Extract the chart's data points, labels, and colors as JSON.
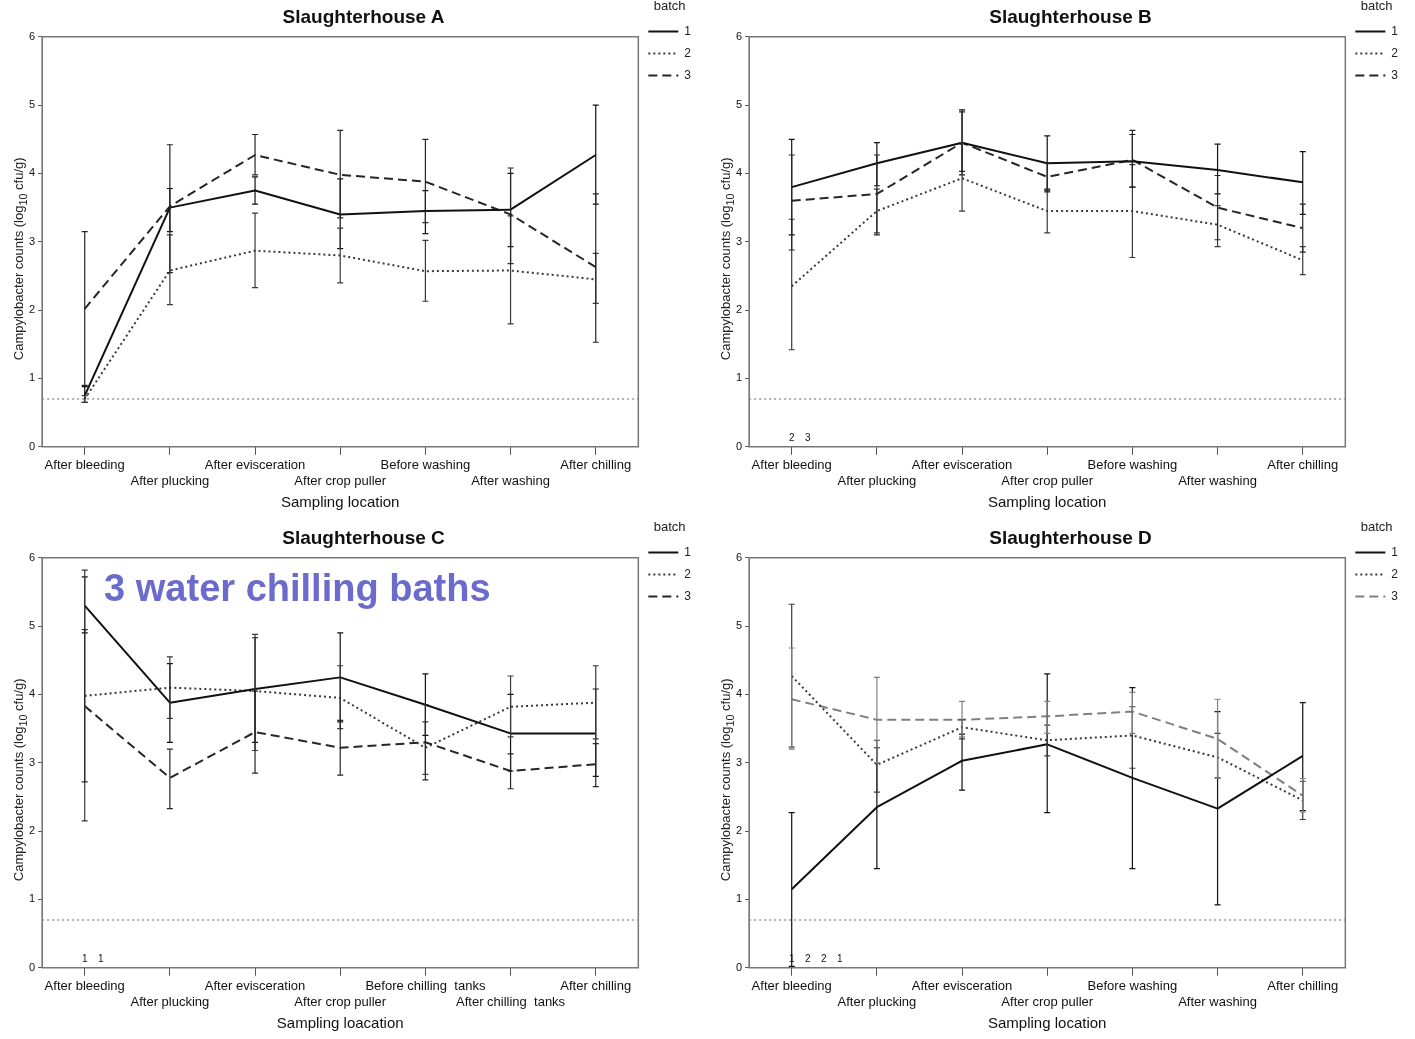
{
  "chart_data": [
    {
      "type": "line",
      "title": "Slaughterhouse A",
      "xlabel": "Sampling location",
      "ylabel": "Campylobacter counts (log$_{10}$ cfu/g)",
      "legend_title": "batch",
      "legend": "top right",
      "categories": [
        "After bleeding",
        "After plucking",
        "After evisceration",
        "After crop puller",
        "Before washing",
        "After washing",
        "After chilling"
      ],
      "ylim": [
        0,
        6
      ],
      "yticks": [
        0,
        1,
        2,
        3,
        4,
        5,
        6
      ],
      "ref_lines": [
        {
          "axis": "y",
          "value": 0.7,
          "color": "#999999",
          "line_style": "dotted"
        }
      ],
      "series": [
        {
          "name": "1",
          "color": "#111111",
          "line_style": "solid",
          "values": [
            0.75,
            3.5,
            3.75,
            3.4,
            3.45,
            3.47,
            4.27
          ],
          "errors": [
            [
              0.65,
              0.88
            ],
            [
              3.15,
              3.78
            ],
            [
              3.55,
              3.95
            ],
            [
              2.9,
              3.92
            ],
            [
              3.12,
              3.75
            ],
            [
              2.93,
              4.0
            ],
            [
              3.55,
              5.0
            ]
          ]
        },
        {
          "name": "2",
          "color": "#3a3a3a",
          "line_style": "dotted",
          "values": [
            0.7,
            2.58,
            2.87,
            2.8,
            2.57,
            2.58,
            2.45
          ],
          "errors": [
            [
              0.65,
              0.75
            ],
            [
              2.08,
              3.1
            ],
            [
              2.33,
              3.42
            ],
            [
              2.4,
              3.2
            ],
            [
              2.13,
              3.02
            ],
            [
              1.8,
              3.38
            ],
            [
              2.1,
              2.83
            ]
          ]
        },
        {
          "name": "3",
          "color": "#262626",
          "line_style": "dashed",
          "values": [
            2.02,
            3.52,
            4.27,
            3.98,
            3.88,
            3.4,
            2.63
          ],
          "errors": [
            [
              0.9,
              3.15
            ],
            [
              2.55,
              4.42
            ],
            [
              3.98,
              4.57
            ],
            [
              3.35,
              4.63
            ],
            [
              3.28,
              4.5
            ],
            [
              2.68,
              4.08
            ],
            [
              1.53,
              3.7
            ]
          ]
        }
      ]
    },
    {
      "type": "line",
      "title": "Slaughterhouse B",
      "xlabel": "Sampling location",
      "ylabel": "Campylobacter counts (log$_{10}$ cfu/g)",
      "legend_title": "batch",
      "legend": "top right",
      "categories": [
        "After bleeding",
        "After plucking",
        "After evisceration",
        "After crop puller",
        "Before washing",
        "After washing",
        "After chilling"
      ],
      "ylim": [
        0,
        6
      ],
      "yticks": [
        0,
        1,
        2,
        3,
        4,
        5,
        6
      ],
      "ref_lines": [
        {
          "axis": "y",
          "value": 0.7,
          "color": "#999999",
          "line_style": "dotted"
        }
      ],
      "annotations": [
        "2",
        "3"
      ],
      "series": [
        {
          "name": "1",
          "color": "#111111",
          "line_style": "solid",
          "values": [
            3.8,
            4.15,
            4.45,
            4.15,
            4.18,
            4.05,
            3.87
          ],
          "errors": [
            [
              3.1,
              4.5
            ],
            [
              3.82,
              4.45
            ],
            [
              3.98,
              4.93
            ],
            [
              3.77,
              4.55
            ],
            [
              3.8,
              4.57
            ],
            [
              3.7,
              4.43
            ],
            [
              3.4,
              4.32
            ]
          ]
        },
        {
          "name": "2",
          "color": "#3a3a3a",
          "line_style": "dotted",
          "values": [
            2.35,
            3.45,
            3.93,
            3.45,
            3.45,
            3.25,
            2.73
          ],
          "errors": [
            [
              1.42,
              3.33
            ],
            [
              3.13,
              3.77
            ],
            [
              3.45,
              4.45
            ],
            [
              3.13,
              3.75
            ],
            [
              2.77,
              4.13
            ],
            [
              2.93,
              3.53
            ],
            [
              2.52,
              2.93
            ]
          ]
        },
        {
          "name": "3",
          "color": "#262626",
          "line_style": "dashed",
          "values": [
            3.6,
            3.7,
            4.45,
            3.95,
            4.2,
            3.5,
            3.2
          ],
          "errors": [
            [
              2.88,
              4.27
            ],
            [
              3.1,
              4.27
            ],
            [
              4.03,
              4.9
            ],
            [
              3.73,
              4.15
            ],
            [
              3.8,
              4.63
            ],
            [
              3.03,
              3.97
            ],
            [
              2.85,
              3.55
            ]
          ]
        }
      ]
    },
    {
      "type": "line",
      "title": "Slaughterhouse C",
      "xlabel": "Sampling loacation",
      "ylabel": "Campylobacter counts (log$_{10}$ cfu/g)",
      "legend_title": "batch",
      "legend": "top right",
      "categories": [
        "After bleeding",
        "After plucking",
        "After evisceration",
        "After crop puller",
        "Before chilling  tanks",
        "After chilling  tanks",
        "After chilling"
      ],
      "ylim": [
        0,
        6
      ],
      "yticks": [
        0,
        1,
        2,
        3,
        4,
        5,
        6
      ],
      "ref_lines": [
        {
          "axis": "y",
          "value": 0.7,
          "color": "#999999",
          "line_style": "dotted"
        }
      ],
      "annotations": [
        "3 water chilling baths",
        "1",
        "1"
      ],
      "series": [
        {
          "name": "1",
          "color": "#111111",
          "line_style": "solid",
          "values": [
            5.3,
            3.88,
            4.08,
            4.25,
            3.85,
            3.43,
            3.43
          ],
          "errors": [
            [
              4.9,
              5.72
            ],
            [
              3.3,
              4.45
            ],
            [
              3.3,
              4.83
            ],
            [
              3.6,
              4.9
            ],
            [
              3.4,
              4.3
            ],
            [
              2.88,
              4.0
            ],
            [
              2.8,
              4.08
            ]
          ]
        },
        {
          "name": "2",
          "color": "#3a3a3a",
          "line_style": "dotted",
          "values": [
            3.98,
            4.1,
            4.05,
            3.95,
            3.22,
            3.82,
            3.88
          ],
          "errors": [
            [
              2.15,
              5.82
            ],
            [
              3.65,
              4.55
            ],
            [
              3.18,
              4.88
            ],
            [
              3.5,
              4.42
            ],
            [
              2.83,
              3.6
            ],
            [
              3.38,
              4.27
            ],
            [
              3.35,
              4.42
            ]
          ]
        },
        {
          "name": "3",
          "color": "#262626",
          "line_style": "dashed",
          "values": [
            3.83,
            2.78,
            3.45,
            3.22,
            3.3,
            2.88,
            2.98
          ],
          "errors": [
            [
              2.72,
              4.95
            ],
            [
              2.33,
              3.2
            ],
            [
              2.85,
              4.05
            ],
            [
              2.82,
              3.62
            ],
            [
              2.75,
              3.85
            ],
            [
              2.62,
              3.13
            ],
            [
              2.65,
              3.28
            ]
          ]
        }
      ]
    },
    {
      "type": "line",
      "title": "Slaughterhouse D",
      "xlabel": "Sampling location",
      "ylabel": "Campylobacter counts (log$_{10}$ cfu/g)",
      "legend_title": "batch",
      "legend": "top right",
      "categories": [
        "After bleeding",
        "After plucking",
        "After evisceration",
        "After crop puller",
        "Before washing",
        "After washing",
        "After chilling"
      ],
      "ylim": [
        0,
        6
      ],
      "yticks": [
        0,
        1,
        2,
        3,
        4,
        5,
        6
      ],
      "ref_lines": [
        {
          "axis": "y",
          "value": 0.7,
          "color": "#999999",
          "line_style": "dotted"
        }
      ],
      "annotations": [
        "1",
        "2",
        "2",
        "1"
      ],
      "series": [
        {
          "name": "1",
          "color": "#111111",
          "line_style": "solid",
          "values": [
            1.15,
            2.35,
            3.03,
            3.27,
            2.78,
            2.33,
            3.1
          ],
          "errors": [
            [
              0.02,
              2.27
            ],
            [
              1.45,
              3.22
            ],
            [
              2.6,
              3.42
            ],
            [
              2.27,
              4.3
            ],
            [
              1.45,
              4.1
            ],
            [
              0.92,
              3.75
            ],
            [
              2.3,
              3.88
            ]
          ]
        },
        {
          "name": "2",
          "color": "#3a3a3a",
          "line_style": "dotted",
          "values": [
            4.27,
            2.97,
            3.52,
            3.33,
            3.4,
            3.08,
            2.45
          ],
          "errors": [
            [
              3.23,
              5.32
            ],
            [
              2.57,
              3.33
            ],
            [
              3.35,
              3.63
            ],
            [
              3.1,
              3.55
            ],
            [
              2.92,
              3.82
            ],
            [
              2.78,
              3.43
            ],
            [
              2.17,
              2.73
            ]
          ]
        },
        {
          "name": "3",
          "color": "#808080",
          "line_style": "dashed",
          "values": [
            3.93,
            3.63,
            3.63,
            3.68,
            3.75,
            3.35,
            2.52
          ],
          "errors": [
            [
              3.2,
              4.68
            ],
            [
              3.0,
              4.25
            ],
            [
              3.38,
              3.9
            ],
            [
              3.43,
              3.9
            ],
            [
              3.43,
              4.03
            ],
            [
              2.77,
              3.93
            ],
            [
              2.28,
              2.77
            ]
          ]
        }
      ]
    }
  ]
}
